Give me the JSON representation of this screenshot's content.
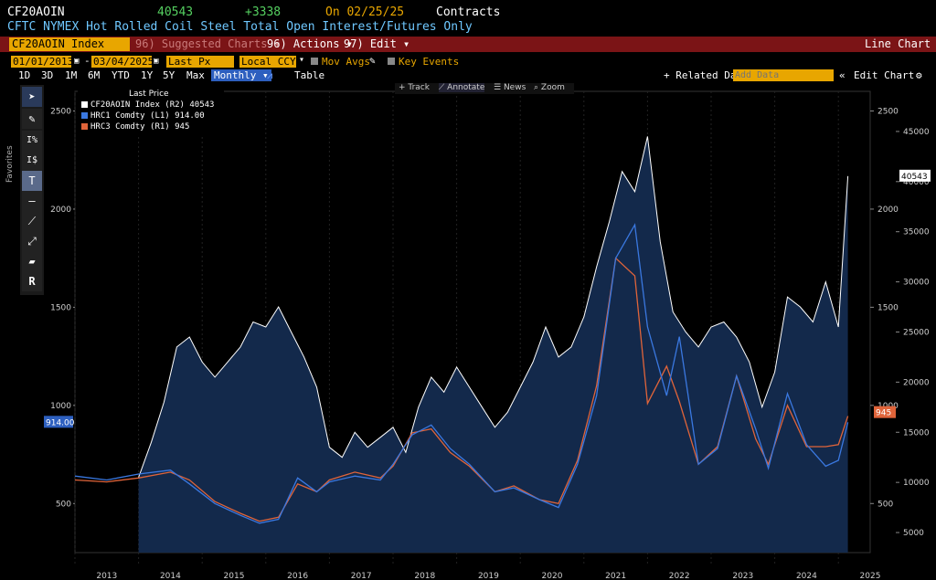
{
  "header": {
    "ticker": "CF20AOIN",
    "value": "40543",
    "change": "+3338",
    "date_label": "On 02/25/25",
    "units": "Contracts",
    "description": "CFTC NYMEX Hot Rolled Coil Steel Total Open Interest/Futures Only"
  },
  "toolbar": {
    "security": "CF20AOIN Index",
    "suggested": "96) Suggested Charts ▾",
    "actions": "96) Actions ▾",
    "edit": "97) Edit ▾",
    "chart_type": "Line Chart",
    "start_date": "01/01/2013",
    "end_date": "03/04/2025",
    "field": "Last Px",
    "currency": "Local CCY",
    "mov_avgs": "Mov Avgs",
    "key_events": "Key Events",
    "ranges": [
      "1D",
      "3D",
      "1M",
      "6M",
      "YTD",
      "1Y",
      "5Y",
      "Max"
    ],
    "freq": "Monthly ▾",
    "table": "Table",
    "related": "+ Related Dat",
    "add_data_placeholder": "Add Data",
    "edit_chart": "Edit Chart",
    "chart_tools": [
      "Track",
      "Annotate",
      "News",
      "Zoom"
    ],
    "favorites": "Favorites"
  },
  "legend": {
    "title": "Last Price",
    "items": [
      {
        "name": "CF20AOIN Index (R2) 40543",
        "color": "#ffffff"
      },
      {
        "name": "HRC1 Comdty (L1) 914.00",
        "color": "#3a78e0"
      },
      {
        "name": "HRC3 Comdty (R1) 945",
        "color": "#e0643a"
      }
    ]
  },
  "chart_data": {
    "type": "line",
    "x_years": [
      "2013",
      "2014",
      "2015",
      "2016",
      "2017",
      "2018",
      "2019",
      "2020",
      "2021",
      "2022",
      "2023",
      "2024",
      "2025"
    ],
    "left_axis": {
      "ticks": [
        "500",
        "1000",
        "1500",
        "2000",
        "2500"
      ],
      "range": [
        250,
        2600
      ]
    },
    "right1_axis": {
      "ticks": [
        "500",
        "1000",
        "1500",
        "2000",
        "2500"
      ]
    },
    "right2_axis": {
      "ticks": [
        "5000",
        "10000",
        "15000",
        "20000",
        "25000",
        "30000",
        "35000",
        "40000",
        "45000"
      ],
      "range": [
        3000,
        49000
      ]
    },
    "last_labels": {
      "oi": "40543",
      "hrc1": "914.00",
      "hrc3": "945"
    },
    "colors": {
      "oi": "#ffffff",
      "hrc1": "#3a78e0",
      "hrc3": "#e0643a",
      "fill": "#13294b"
    },
    "oi_series": [
      [
        2014.0,
        10500
      ],
      [
        2014.2,
        14000
      ],
      [
        2014.4,
        18000
      ],
      [
        2014.6,
        23500
      ],
      [
        2014.8,
        24500
      ],
      [
        2015.0,
        22000
      ],
      [
        2015.2,
        20500
      ],
      [
        2015.4,
        22000
      ],
      [
        2015.6,
        23500
      ],
      [
        2015.8,
        26000
      ],
      [
        2016.0,
        25500
      ],
      [
        2016.2,
        27500
      ],
      [
        2016.4,
        25000
      ],
      [
        2016.6,
        22500
      ],
      [
        2016.8,
        19500
      ],
      [
        2017.0,
        13500
      ],
      [
        2017.2,
        12500
      ],
      [
        2017.4,
        15000
      ],
      [
        2017.6,
        13500
      ],
      [
        2017.8,
        14500
      ],
      [
        2018.0,
        15500
      ],
      [
        2018.2,
        13000
      ],
      [
        2018.4,
        17500
      ],
      [
        2018.6,
        20500
      ],
      [
        2018.8,
        19000
      ],
      [
        2019.0,
        21500
      ],
      [
        2019.2,
        19500
      ],
      [
        2019.4,
        17500
      ],
      [
        2019.6,
        15500
      ],
      [
        2019.8,
        17000
      ],
      [
        2020.0,
        19500
      ],
      [
        2020.2,
        22000
      ],
      [
        2020.4,
        25500
      ],
      [
        2020.6,
        22500
      ],
      [
        2020.8,
        23500
      ],
      [
        2021.0,
        26500
      ],
      [
        2021.2,
        31500
      ],
      [
        2021.4,
        36000
      ],
      [
        2021.6,
        41000
      ],
      [
        2021.8,
        39000
      ],
      [
        2022.0,
        44500
      ],
      [
        2022.2,
        34000
      ],
      [
        2022.4,
        27000
      ],
      [
        2022.6,
        25000
      ],
      [
        2022.8,
        23500
      ],
      [
        2023.0,
        25500
      ],
      [
        2023.2,
        26000
      ],
      [
        2023.4,
        24500
      ],
      [
        2023.6,
        22000
      ],
      [
        2023.8,
        17500
      ],
      [
        2024.0,
        21000
      ],
      [
        2024.2,
        28500
      ],
      [
        2024.4,
        27500
      ],
      [
        2024.6,
        26000
      ],
      [
        2024.8,
        30000
      ],
      [
        2025.0,
        25500
      ],
      [
        2025.15,
        40543
      ]
    ],
    "hrc1_series": [
      [
        2013.0,
        640
      ],
      [
        2013.5,
        620
      ],
      [
        2014.0,
        650
      ],
      [
        2014.5,
        670
      ],
      [
        2014.8,
        600
      ],
      [
        2015.2,
        500
      ],
      [
        2015.6,
        440
      ],
      [
        2015.9,
        400
      ],
      [
        2016.2,
        420
      ],
      [
        2016.5,
        630
      ],
      [
        2016.8,
        560
      ],
      [
        2017.0,
        610
      ],
      [
        2017.4,
        640
      ],
      [
        2017.8,
        620
      ],
      [
        2018.0,
        700
      ],
      [
        2018.3,
        850
      ],
      [
        2018.6,
        900
      ],
      [
        2018.9,
        780
      ],
      [
        2019.2,
        700
      ],
      [
        2019.6,
        560
      ],
      [
        2019.9,
        580
      ],
      [
        2020.3,
        520
      ],
      [
        2020.6,
        480
      ],
      [
        2020.9,
        700
      ],
      [
        2021.2,
        1050
      ],
      [
        2021.5,
        1750
      ],
      [
        2021.8,
        1920
      ],
      [
        2022.0,
        1400
      ],
      [
        2022.3,
        1050
      ],
      [
        2022.5,
        1350
      ],
      [
        2022.8,
        700
      ],
      [
        2023.1,
        780
      ],
      [
        2023.4,
        1150
      ],
      [
        2023.7,
        880
      ],
      [
        2023.9,
        680
      ],
      [
        2024.2,
        1060
      ],
      [
        2024.5,
        800
      ],
      [
        2024.8,
        690
      ],
      [
        2025.0,
        720
      ],
      [
        2025.15,
        914
      ]
    ],
    "hrc3_series": [
      [
        2013.0,
        620
      ],
      [
        2013.5,
        610
      ],
      [
        2014.0,
        630
      ],
      [
        2014.5,
        660
      ],
      [
        2014.8,
        620
      ],
      [
        2015.2,
        510
      ],
      [
        2015.6,
        450
      ],
      [
        2015.9,
        410
      ],
      [
        2016.2,
        430
      ],
      [
        2016.5,
        600
      ],
      [
        2016.8,
        560
      ],
      [
        2017.0,
        620
      ],
      [
        2017.4,
        660
      ],
      [
        2017.8,
        630
      ],
      [
        2018.0,
        690
      ],
      [
        2018.3,
        860
      ],
      [
        2018.6,
        880
      ],
      [
        2018.9,
        760
      ],
      [
        2019.2,
        690
      ],
      [
        2019.6,
        560
      ],
      [
        2019.9,
        590
      ],
      [
        2020.3,
        520
      ],
      [
        2020.6,
        500
      ],
      [
        2020.9,
        720
      ],
      [
        2021.2,
        1100
      ],
      [
        2021.5,
        1750
      ],
      [
        2021.8,
        1660
      ],
      [
        2022.0,
        1010
      ],
      [
        2022.3,
        1200
      ],
      [
        2022.5,
        1020
      ],
      [
        2022.8,
        700
      ],
      [
        2023.1,
        790
      ],
      [
        2023.4,
        1150
      ],
      [
        2023.7,
        830
      ],
      [
        2023.9,
        700
      ],
      [
        2024.2,
        1000
      ],
      [
        2024.5,
        790
      ],
      [
        2024.8,
        790
      ],
      [
        2025.0,
        800
      ],
      [
        2025.15,
        945
      ]
    ]
  }
}
